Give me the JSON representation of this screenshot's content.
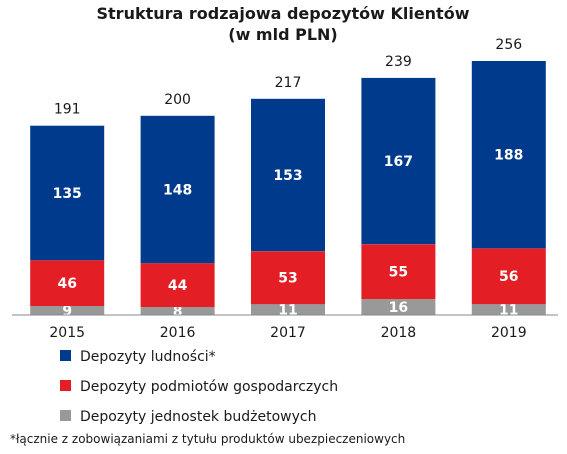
{
  "chart_data": {
    "type": "bar",
    "stacked": true,
    "title": "Struktura rodzajowa depozytów Klientów",
    "subtitle": "(w mld PLN)",
    "categories": [
      "2015",
      "2016",
      "2017",
      "2018",
      "2019"
    ],
    "series": [
      {
        "name": "Depozyty jednostek budżetowych",
        "color": "#999999",
        "values": [
          9,
          8,
          11,
          16,
          11
        ]
      },
      {
        "name": "Depozyty podmiotów gospodarczych",
        "color": "#e31e24",
        "values": [
          46,
          44,
          53,
          55,
          56
        ]
      },
      {
        "name": "Depozyty ludności*",
        "color": "#003a8c",
        "values": [
          135,
          148,
          153,
          167,
          188
        ]
      }
    ],
    "totals": [
      191,
      200,
      217,
      239,
      256
    ],
    "legend_order": [
      2,
      1,
      0
    ],
    "footnote": "*łącznie z zobowiązaniami z tytułu produktów ubezpieczeniowych",
    "ylim": [
      0,
      256
    ],
    "grid": false
  }
}
